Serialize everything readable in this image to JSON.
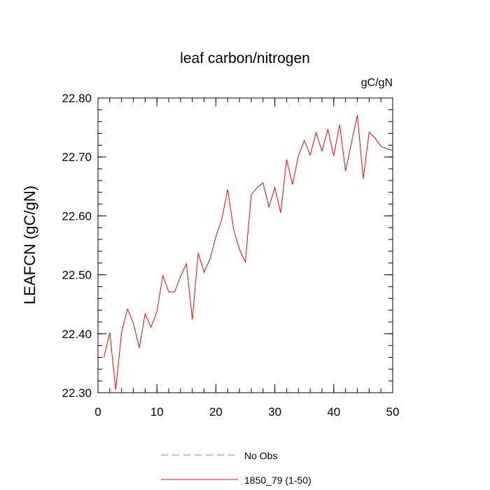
{
  "chart_data": {
    "type": "line",
    "title": "leaf carbon/nitrogen",
    "units": "gC/gN",
    "xlabel": "",
    "ylabel": "LEAFCN  (gC/gN)",
    "xlim": [
      0,
      50
    ],
    "ylim": [
      22.3,
      22.8
    ],
    "x_ticks": [
      0,
      10,
      20,
      30,
      40,
      50
    ],
    "x_tick_labels": [
      "0",
      "10",
      "20",
      "30",
      "40",
      "50"
    ],
    "y_ticks": [
      22.3,
      22.4,
      22.5,
      22.6,
      22.7,
      22.8
    ],
    "y_tick_labels": [
      "22.30",
      "22.40",
      "22.50",
      "22.60",
      "22.70",
      "22.80"
    ],
    "x_minor_step": 2,
    "y_minor_step": 0.02,
    "grid": false,
    "legend_position": "bottom-center",
    "series": [
      {
        "name": "1850_79 (1-50)",
        "color": "#ff0000",
        "dash": "solid",
        "x": [
          1,
          2,
          3,
          4,
          5,
          6,
          7,
          8,
          9,
          10,
          11,
          12,
          13,
          14,
          15,
          16,
          17,
          18,
          19,
          20,
          21,
          22,
          23,
          24,
          25,
          26,
          27,
          28,
          29,
          30,
          31,
          32,
          33,
          34,
          35,
          36,
          37,
          38,
          39,
          40,
          41,
          42,
          43,
          44,
          45,
          46,
          47,
          48,
          49,
          50
        ],
        "values": [
          22.36,
          22.402,
          22.305,
          22.402,
          22.442,
          22.418,
          22.376,
          22.434,
          22.411,
          22.438,
          22.499,
          22.471,
          22.471,
          22.497,
          22.519,
          22.424,
          22.537,
          22.504,
          22.527,
          22.565,
          22.594,
          22.645,
          22.578,
          22.543,
          22.522,
          22.636,
          22.648,
          22.656,
          22.615,
          22.648,
          22.605,
          22.696,
          22.653,
          22.702,
          22.728,
          22.703,
          22.741,
          22.71,
          22.747,
          22.702,
          22.755,
          22.676,
          22.724,
          22.771,
          22.663,
          22.742,
          22.732,
          22.718,
          22.714,
          22.711
        ]
      }
    ],
    "legend": [
      {
        "label": "No Obs",
        "color": "#7777ff",
        "dash": "dashed"
      },
      {
        "label": "1850_79 (1-50)",
        "color": "#ff0000",
        "dash": "solid"
      }
    ]
  }
}
